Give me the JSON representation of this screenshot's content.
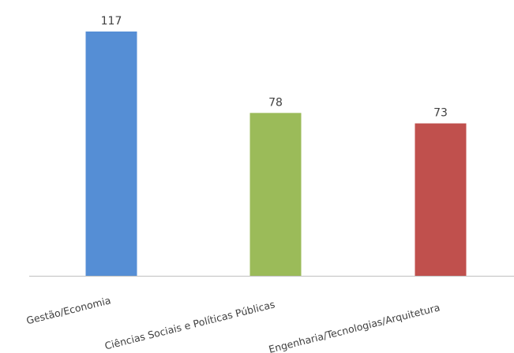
{
  "chart_data": {
    "type": "bar",
    "categories": [
      "Gestão/Economia",
      "Ciências Sociais e Políticas Públicas",
      "Engenharia/Tecnologias/Arquitetura"
    ],
    "values": [
      117,
      78,
      73
    ],
    "bar_colors": [
      "#558ED5",
      "#9BBB59",
      "#C0504D"
    ],
    "axis_color": "#BFBFBF",
    "label_color": "#404040",
    "ylim": [
      0,
      117
    ],
    "grid": false,
    "legend": "none",
    "data_labels": true,
    "title": "",
    "xlabel": "",
    "ylabel": ""
  }
}
